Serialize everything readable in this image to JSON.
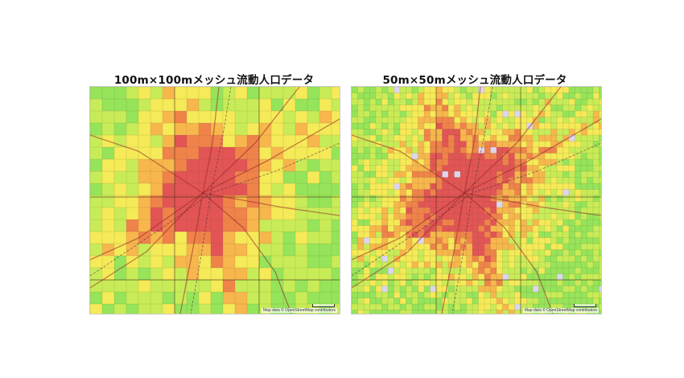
{
  "panels": [
    {
      "title": "100m×100mメッシュ流動人口データ",
      "attribution": "Map data © OpenStreetMap contributors",
      "mesh_resolution": "100m",
      "heat_colors": [
        "#8ee34d",
        "#c4ec4a",
        "#f5e94a",
        "#f7b23e",
        "#ef7a3c",
        "#e24848"
      ]
    },
    {
      "title": "50m×50mメッシュ流動人口データ",
      "attribution": "Map data © OpenStreetMap contributors",
      "mesh_resolution": "50m",
      "heat_colors": [
        "#8ee34d",
        "#c4ec4a",
        "#f5e94a",
        "#f7b23e",
        "#ef7a3c",
        "#e24848"
      ]
    }
  ]
}
